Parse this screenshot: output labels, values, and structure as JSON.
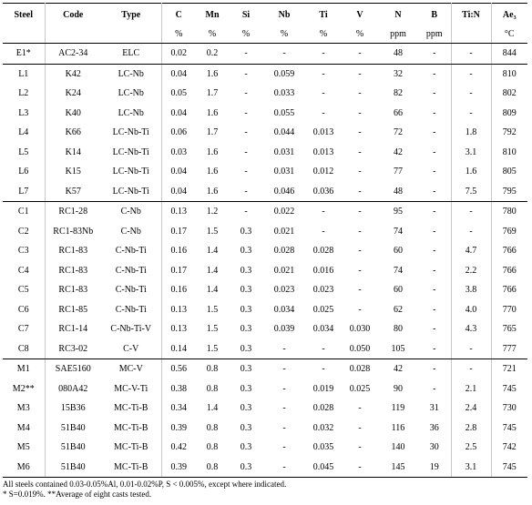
{
  "columns": [
    {
      "name": "Steel",
      "unit": ""
    },
    {
      "name": "Code",
      "unit": ""
    },
    {
      "name": "Type",
      "unit": ""
    },
    {
      "name": "C",
      "unit": "%"
    },
    {
      "name": "Mn",
      "unit": "%"
    },
    {
      "name": "Si",
      "unit": "%"
    },
    {
      "name": "Nb",
      "unit": "%"
    },
    {
      "name": "Ti",
      "unit": "%"
    },
    {
      "name": "V",
      "unit": "%"
    },
    {
      "name": "N",
      "unit": "ppm"
    },
    {
      "name": "B",
      "unit": "ppm"
    },
    {
      "name": "Ti:N",
      "unit": ""
    },
    {
      "name": "Ae₃",
      "unit": "°C"
    }
  ],
  "groups": [
    [
      [
        "E1*",
        "AC2-34",
        "ELC",
        "0.02",
        "0.2",
        "-",
        "-",
        "-",
        "-",
        "48",
        "-",
        "-",
        "844"
      ]
    ],
    [
      [
        "L1",
        "K42",
        "LC-Nb",
        "0.04",
        "1.6",
        "-",
        "0.059",
        "-",
        "-",
        "32",
        "-",
        "-",
        "810"
      ],
      [
        "L2",
        "K24",
        "LC-Nb",
        "0.05",
        "1.7",
        "-",
        "0.033",
        "-",
        "-",
        "82",
        "-",
        "-",
        "802"
      ],
      [
        "L3",
        "K40",
        "LC-Nb",
        "0.04",
        "1.6",
        "-",
        "0.055",
        "-",
        "-",
        "66",
        "-",
        "-",
        "809"
      ],
      [
        "L4",
        "K66",
        "LC-Nb-Ti",
        "0.06",
        "1.7",
        "-",
        "0.044",
        "0.013",
        "-",
        "72",
        "-",
        "1.8",
        "792"
      ],
      [
        "L5",
        "K14",
        "LC-Nb-Ti",
        "0.03",
        "1.6",
        "-",
        "0.031",
        "0.013",
        "-",
        "42",
        "-",
        "3.1",
        "810"
      ],
      [
        "L6",
        "K15",
        "LC-Nb-Ti",
        "0.04",
        "1.6",
        "-",
        "0.031",
        "0.012",
        "-",
        "77",
        "-",
        "1.6",
        "805"
      ],
      [
        "L7",
        "K57",
        "LC-Nb-Ti",
        "0.04",
        "1.6",
        "-",
        "0.046",
        "0.036",
        "-",
        "48",
        "-",
        "7.5",
        "795"
      ]
    ],
    [
      [
        "C1",
        "RC1-28",
        "C-Nb",
        "0.13",
        "1.2",
        "-",
        "0.022",
        "-",
        "-",
        "95",
        "-",
        "-",
        "780"
      ],
      [
        "C2",
        "RC1-83Nb",
        "C-Nb",
        "0.17",
        "1.5",
        "0.3",
        "0.021",
        "-",
        "-",
        "74",
        "-",
        "-",
        "769"
      ],
      [
        "C3",
        "RC1-83",
        "C-Nb-Ti",
        "0.16",
        "1.4",
        "0.3",
        "0.028",
        "0.028",
        "-",
        "60",
        "-",
        "4.7",
        "766"
      ],
      [
        "C4",
        "RC1-83",
        "C-Nb-Ti",
        "0.17",
        "1.4",
        "0.3",
        "0.021",
        "0.016",
        "-",
        "74",
        "-",
        "2.2",
        "766"
      ],
      [
        "C5",
        "RC1-83",
        "C-Nb-Ti",
        "0.16",
        "1.4",
        "0.3",
        "0.023",
        "0.023",
        "-",
        "60",
        "-",
        "3.8",
        "766"
      ],
      [
        "C6",
        "RC1-85",
        "C-Nb-Ti",
        "0.13",
        "1.5",
        "0.3",
        "0.034",
        "0.025",
        "-",
        "62",
        "-",
        "4.0",
        "770"
      ],
      [
        "C7",
        "RC1-14",
        "C-Nb-Ti-V",
        "0.13",
        "1.5",
        "0.3",
        "0.039",
        "0.034",
        "0.030",
        "80",
        "-",
        "4.3",
        "765"
      ],
      [
        "C8",
        "RC3-02",
        "C-V",
        "0.14",
        "1.5",
        "0.3",
        "-",
        "-",
        "0.050",
        "105",
        "-",
        "-",
        "777"
      ]
    ],
    [
      [
        "M1",
        "SAE5160",
        "MC-V",
        "0.56",
        "0.8",
        "0.3",
        "-",
        "-",
        "0.028",
        "42",
        "-",
        "-",
        "721"
      ],
      [
        "M2**",
        "080A42",
        "MC-V-Ti",
        "0.38",
        "0.8",
        "0.3",
        "-",
        "0.019",
        "0.025",
        "90",
        "-",
        "2.1",
        "745"
      ],
      [
        "M3",
        "15B36",
        "MC-Ti-B",
        "0.34",
        "1.4",
        "0.3",
        "-",
        "0.028",
        "-",
        "119",
        "31",
        "2.4",
        "730"
      ],
      [
        "M4",
        "51B40",
        "MC-Ti-B",
        "0.39",
        "0.8",
        "0.3",
        "-",
        "0.032",
        "-",
        "116",
        "36",
        "2.8",
        "745"
      ],
      [
        "M5",
        "51B40",
        "MC-Ti-B",
        "0.42",
        "0.8",
        "0.3",
        "-",
        "0.035",
        "-",
        "140",
        "30",
        "2.5",
        "742"
      ],
      [
        "M6",
        "51B40",
        "MC-Ti-B",
        "0.39",
        "0.8",
        "0.3",
        "-",
        "0.045",
        "-",
        "145",
        "19",
        "3.1",
        "745"
      ]
    ]
  ],
  "footnotes": [
    "All steels contained 0.03-0.05%Al, 0.01-0.02%P, S < 0.005%, except where indicated.",
    "* S=0.019%. **Average of eight casts tested."
  ]
}
